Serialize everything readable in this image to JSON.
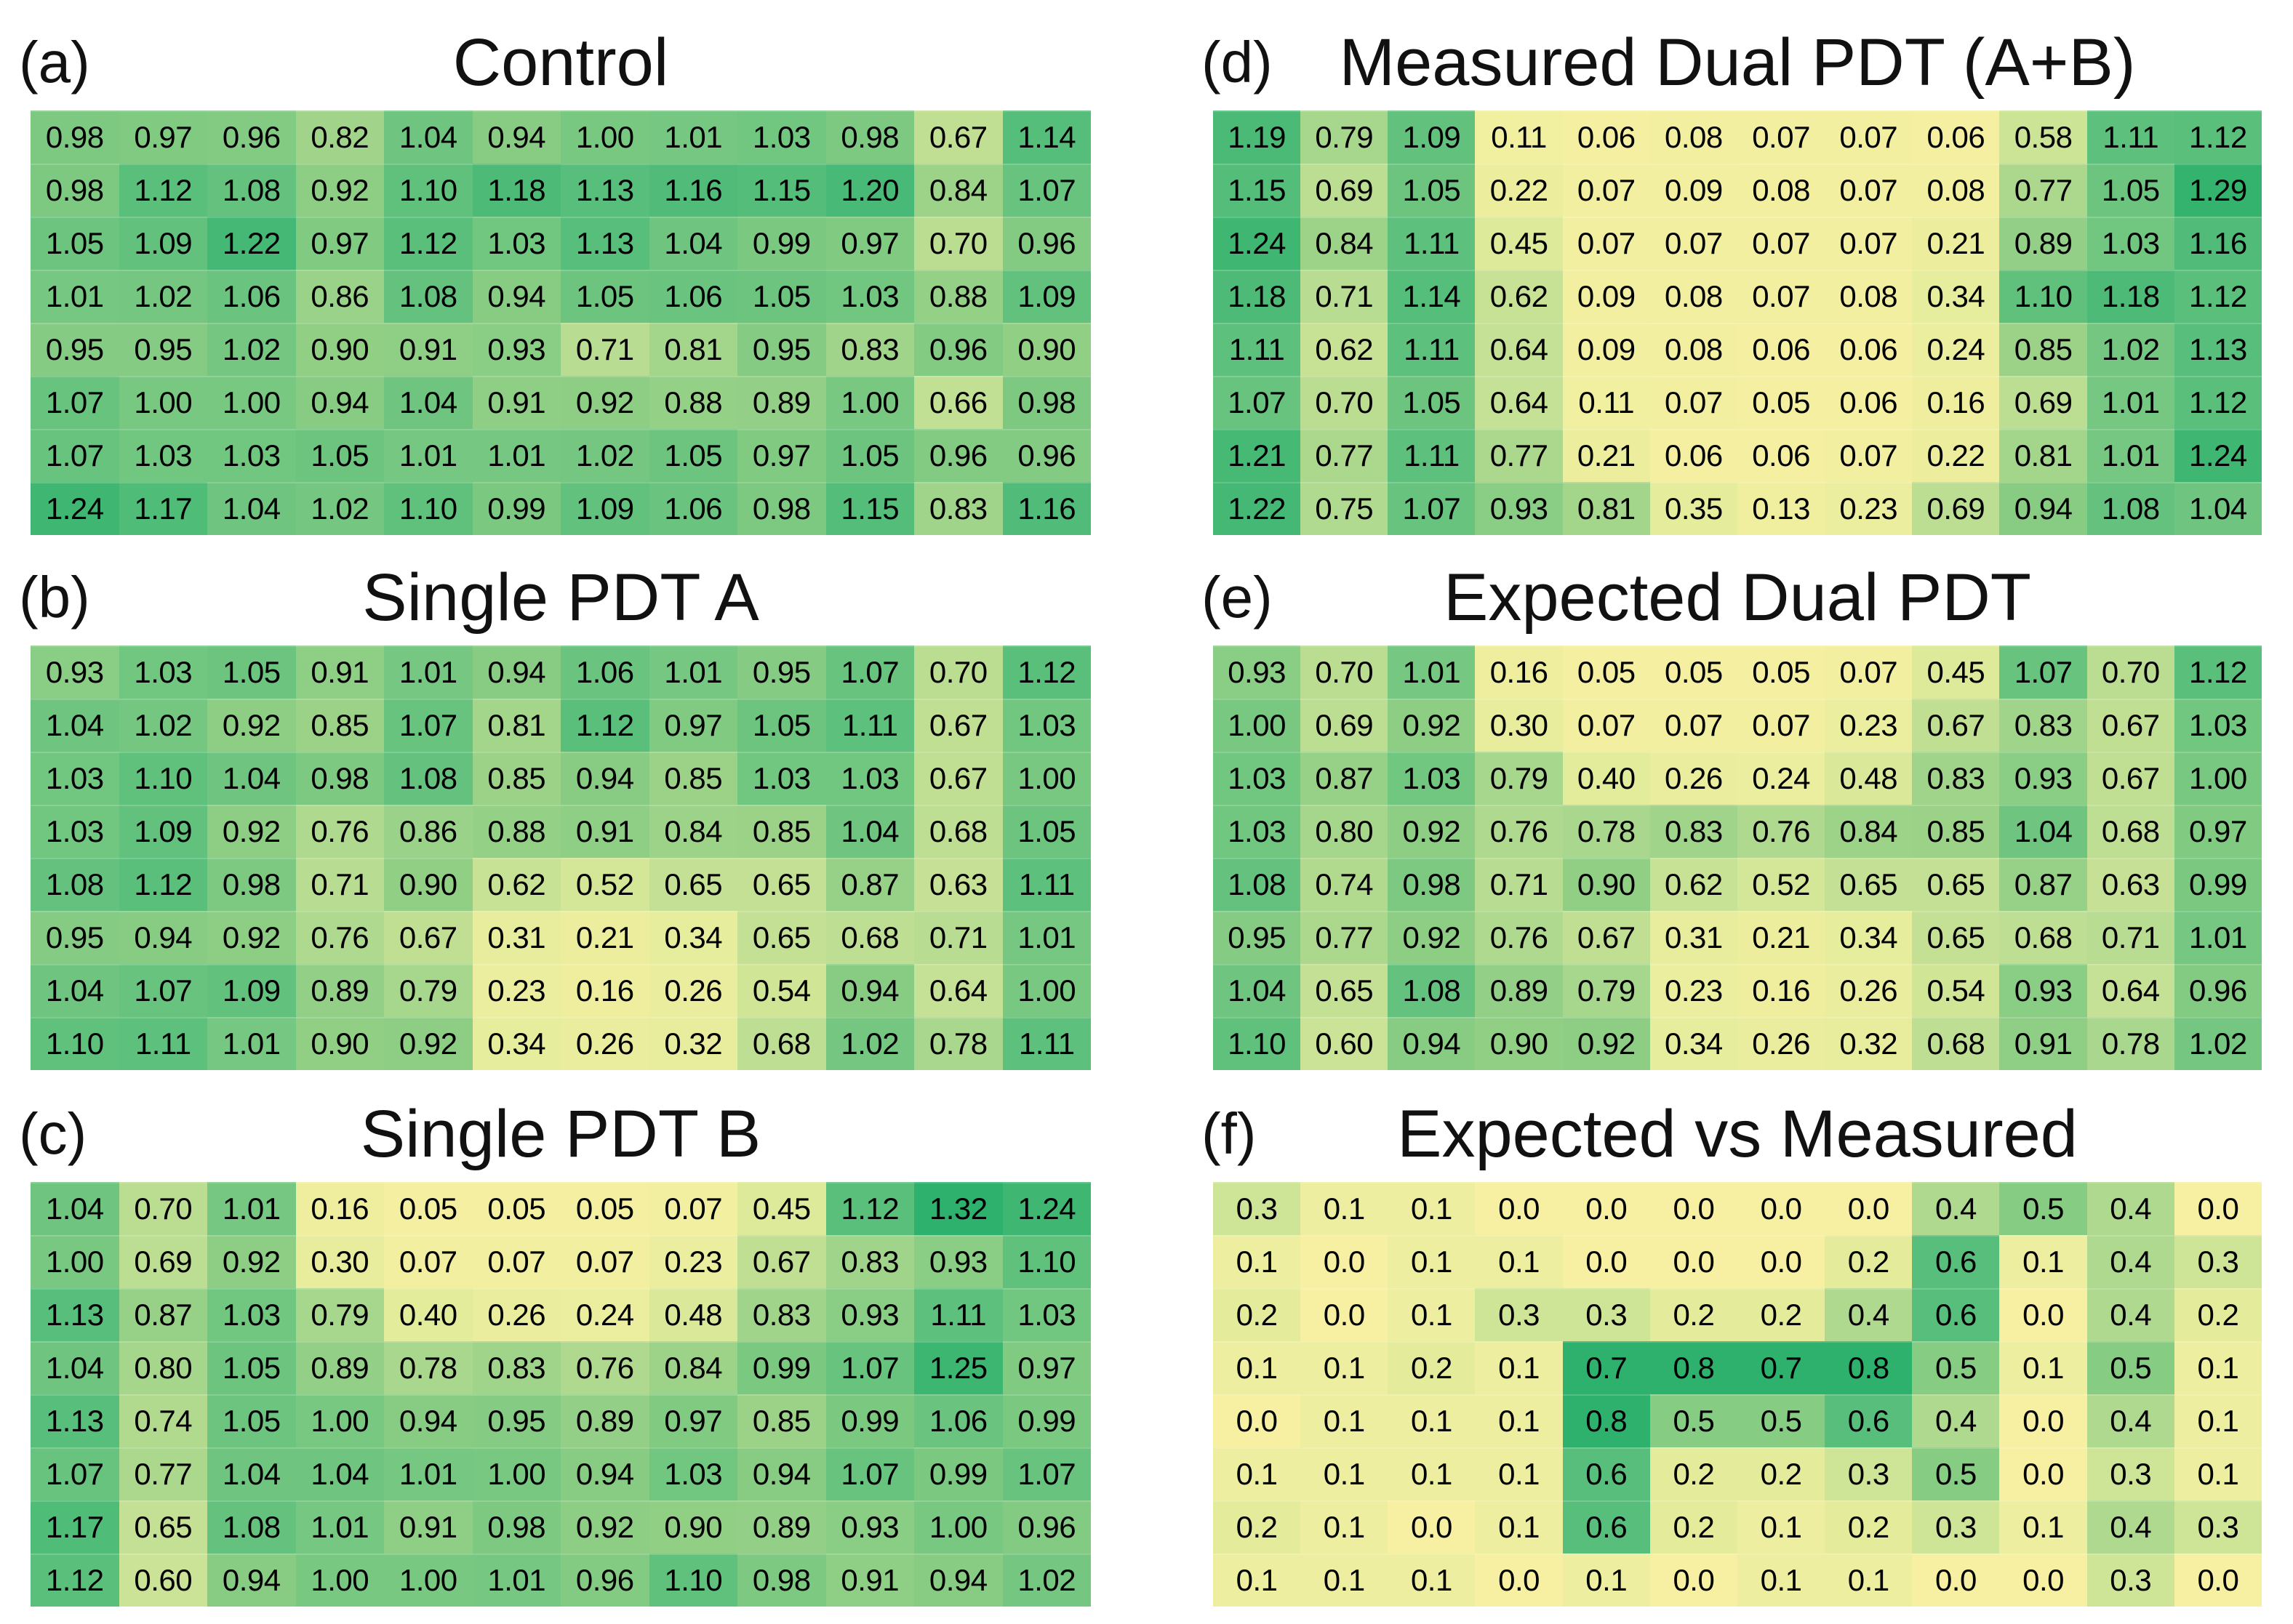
{
  "figure": {
    "description": "Six heatmap panels comparing PDT treatment conditions",
    "rows_per_panel": 8,
    "cols_per_panel": 12,
    "text_color": "#000000",
    "background": "#ffffff"
  },
  "colormap": {
    "low_color": "#F7F0A2",
    "high_color": "#2DB16C",
    "stops": [
      [
        0.0,
        "#F7F0A2"
      ],
      [
        0.3,
        "#E3EC9B"
      ],
      [
        0.5,
        "#C2E094"
      ],
      [
        0.7,
        "#8CCD84"
      ],
      [
        0.85,
        "#5ABF7C"
      ],
      [
        1.0,
        "#2DB16C"
      ]
    ]
  },
  "chart_data": [
    {
      "type": "heatmap",
      "panel_label": "(a)",
      "title": "Control",
      "rows": 8,
      "cols": 12,
      "vmin": 0,
      "vmax": 1.32,
      "decimals": 2,
      "values": [
        [
          0.98,
          0.97,
          0.96,
          0.82,
          1.04,
          0.94,
          1.0,
          1.01,
          1.03,
          0.98,
          0.67,
          1.14
        ],
        [
          0.98,
          1.12,
          1.08,
          0.92,
          1.1,
          1.18,
          1.13,
          1.16,
          1.15,
          1.2,
          0.84,
          1.07
        ],
        [
          1.05,
          1.09,
          1.22,
          0.97,
          1.12,
          1.03,
          1.13,
          1.04,
          0.99,
          0.97,
          0.7,
          0.96
        ],
        [
          1.01,
          1.02,
          1.06,
          0.86,
          1.08,
          0.94,
          1.05,
          1.06,
          1.05,
          1.03,
          0.88,
          1.09
        ],
        [
          0.95,
          0.95,
          1.02,
          0.9,
          0.91,
          0.93,
          0.71,
          0.81,
          0.95,
          0.83,
          0.96,
          0.9
        ],
        [
          1.07,
          1.0,
          1.0,
          0.94,
          1.04,
          0.91,
          0.92,
          0.88,
          0.89,
          1.0,
          0.66,
          0.98
        ],
        [
          1.07,
          1.03,
          1.03,
          1.05,
          1.01,
          1.01,
          1.02,
          1.05,
          0.97,
          1.05,
          0.96,
          0.96
        ],
        [
          1.24,
          1.17,
          1.04,
          1.02,
          1.1,
          0.99,
          1.09,
          1.06,
          0.98,
          1.15,
          0.83,
          1.16
        ]
      ]
    },
    {
      "type": "heatmap",
      "panel_label": "(b)",
      "title": "Single PDT A",
      "rows": 8,
      "cols": 12,
      "vmin": 0,
      "vmax": 1.32,
      "decimals": 2,
      "values": [
        [
          0.93,
          1.03,
          1.05,
          0.91,
          1.01,
          0.94,
          1.06,
          1.01,
          0.95,
          1.07,
          0.7,
          1.12
        ],
        [
          1.04,
          1.02,
          0.92,
          0.85,
          1.07,
          0.81,
          1.12,
          0.97,
          1.05,
          1.11,
          0.67,
          1.03
        ],
        [
          1.03,
          1.1,
          1.04,
          0.98,
          1.08,
          0.85,
          0.94,
          0.85,
          1.03,
          1.03,
          0.67,
          1.0
        ],
        [
          1.03,
          1.09,
          0.92,
          0.76,
          0.86,
          0.88,
          0.91,
          0.84,
          0.85,
          1.04,
          0.68,
          1.05
        ],
        [
          1.08,
          1.12,
          0.98,
          0.71,
          0.9,
          0.62,
          0.52,
          0.65,
          0.65,
          0.87,
          0.63,
          1.11
        ],
        [
          0.95,
          0.94,
          0.92,
          0.76,
          0.67,
          0.31,
          0.21,
          0.34,
          0.65,
          0.68,
          0.71,
          1.01
        ],
        [
          1.04,
          1.07,
          1.09,
          0.89,
          0.79,
          0.23,
          0.16,
          0.26,
          0.54,
          0.94,
          0.64,
          1.0
        ],
        [
          1.1,
          1.11,
          1.01,
          0.9,
          0.92,
          0.34,
          0.26,
          0.32,
          0.68,
          1.02,
          0.78,
          1.11
        ]
      ]
    },
    {
      "type": "heatmap",
      "panel_label": "(c)",
      "title": "Single PDT B",
      "rows": 8,
      "cols": 12,
      "vmin": 0,
      "vmax": 1.32,
      "decimals": 2,
      "values": [
        [
          1.04,
          0.7,
          1.01,
          0.16,
          0.05,
          0.05,
          0.05,
          0.07,
          0.45,
          1.12,
          1.32,
          1.24
        ],
        [
          1.0,
          0.69,
          0.92,
          0.3,
          0.07,
          0.07,
          0.07,
          0.23,
          0.67,
          0.83,
          0.93,
          1.1
        ],
        [
          1.13,
          0.87,
          1.03,
          0.79,
          0.4,
          0.26,
          0.24,
          0.48,
          0.83,
          0.93,
          1.11,
          1.03
        ],
        [
          1.04,
          0.8,
          1.05,
          0.89,
          0.78,
          0.83,
          0.76,
          0.84,
          0.99,
          1.07,
          1.25,
          0.97
        ],
        [
          1.13,
          0.74,
          1.05,
          1.0,
          0.94,
          0.95,
          0.89,
          0.97,
          0.85,
          0.99,
          1.06,
          0.99
        ],
        [
          1.07,
          0.77,
          1.04,
          1.04,
          1.01,
          1.0,
          0.94,
          1.03,
          0.94,
          1.07,
          0.99,
          1.07
        ],
        [
          1.17,
          0.65,
          1.08,
          1.01,
          0.91,
          0.98,
          0.92,
          0.9,
          0.89,
          0.93,
          1.0,
          0.96
        ],
        [
          1.12,
          0.6,
          0.94,
          1.0,
          1.0,
          1.01,
          0.96,
          1.1,
          0.98,
          0.91,
          0.94,
          1.02
        ]
      ]
    },
    {
      "type": "heatmap",
      "panel_label": "(d)",
      "title": "Measured Dual PDT (A+B)",
      "rows": 8,
      "cols": 12,
      "vmin": 0,
      "vmax": 1.32,
      "decimals": 2,
      "values": [
        [
          1.19,
          0.79,
          1.09,
          0.11,
          0.06,
          0.08,
          0.07,
          0.07,
          0.06,
          0.58,
          1.11,
          1.12
        ],
        [
          1.15,
          0.69,
          1.05,
          0.22,
          0.07,
          0.09,
          0.08,
          0.07,
          0.08,
          0.77,
          1.05,
          1.29
        ],
        [
          1.24,
          0.84,
          1.11,
          0.45,
          0.07,
          0.07,
          0.07,
          0.07,
          0.21,
          0.89,
          1.03,
          1.16
        ],
        [
          1.18,
          0.71,
          1.14,
          0.62,
          0.09,
          0.08,
          0.07,
          0.08,
          0.34,
          1.1,
          1.18,
          1.12
        ],
        [
          1.11,
          0.62,
          1.11,
          0.64,
          0.09,
          0.08,
          0.06,
          0.06,
          0.24,
          0.85,
          1.02,
          1.13
        ],
        [
          1.07,
          0.7,
          1.05,
          0.64,
          0.11,
          0.07,
          0.05,
          0.06,
          0.16,
          0.69,
          1.01,
          1.12
        ],
        [
          1.21,
          0.77,
          1.11,
          0.77,
          0.21,
          0.06,
          0.06,
          0.07,
          0.22,
          0.81,
          1.01,
          1.24
        ],
        [
          1.22,
          0.75,
          1.07,
          0.93,
          0.81,
          0.35,
          0.13,
          0.23,
          0.69,
          0.94,
          1.08,
          1.04
        ]
      ]
    },
    {
      "type": "heatmap",
      "panel_label": "(e)",
      "title": "Expected Dual PDT",
      "rows": 8,
      "cols": 12,
      "vmin": 0,
      "vmax": 1.32,
      "decimals": 2,
      "values": [
        [
          0.93,
          0.7,
          1.01,
          0.16,
          0.05,
          0.05,
          0.05,
          0.07,
          0.45,
          1.07,
          0.7,
          1.12
        ],
        [
          1.0,
          0.69,
          0.92,
          0.3,
          0.07,
          0.07,
          0.07,
          0.23,
          0.67,
          0.83,
          0.67,
          1.03
        ],
        [
          1.03,
          0.87,
          1.03,
          0.79,
          0.4,
          0.26,
          0.24,
          0.48,
          0.83,
          0.93,
          0.67,
          1.0
        ],
        [
          1.03,
          0.8,
          0.92,
          0.76,
          0.78,
          0.83,
          0.76,
          0.84,
          0.85,
          1.04,
          0.68,
          0.97
        ],
        [
          1.08,
          0.74,
          0.98,
          0.71,
          0.9,
          0.62,
          0.52,
          0.65,
          0.65,
          0.87,
          0.63,
          0.99
        ],
        [
          0.95,
          0.77,
          0.92,
          0.76,
          0.67,
          0.31,
          0.21,
          0.34,
          0.65,
          0.68,
          0.71,
          1.01
        ],
        [
          1.04,
          0.65,
          1.08,
          0.89,
          0.79,
          0.23,
          0.16,
          0.26,
          0.54,
          0.93,
          0.64,
          0.96
        ],
        [
          1.1,
          0.6,
          0.94,
          0.9,
          0.92,
          0.34,
          0.26,
          0.32,
          0.68,
          0.91,
          0.78,
          1.02
        ]
      ]
    },
    {
      "type": "heatmap",
      "panel_label": "(f)",
      "title": "Expected vs Measured",
      "rows": 8,
      "cols": 12,
      "vmin": 0,
      "vmax": 0.7,
      "decimals": 1,
      "values": [
        [
          0.3,
          0.1,
          0.1,
          0.0,
          0.0,
          0.0,
          0.0,
          0.0,
          0.4,
          0.5,
          0.4,
          0.0
        ],
        [
          0.1,
          0.0,
          0.1,
          0.1,
          0.0,
          0.0,
          0.0,
          0.2,
          0.6,
          0.1,
          0.4,
          0.3
        ],
        [
          0.2,
          0.0,
          0.1,
          0.3,
          0.3,
          0.2,
          0.2,
          0.4,
          0.6,
          0.0,
          0.4,
          0.2
        ],
        [
          0.1,
          0.1,
          0.2,
          0.1,
          0.7,
          0.8,
          0.7,
          0.8,
          0.5,
          0.1,
          0.5,
          0.1
        ],
        [
          0.0,
          0.1,
          0.1,
          0.1,
          0.8,
          0.5,
          0.5,
          0.6,
          0.4,
          0.0,
          0.4,
          0.1
        ],
        [
          0.1,
          0.1,
          0.1,
          0.1,
          0.6,
          0.2,
          0.2,
          0.3,
          0.5,
          0.0,
          0.3,
          0.1
        ],
        [
          0.2,
          0.1,
          0.0,
          0.1,
          0.6,
          0.2,
          0.1,
          0.2,
          0.3,
          0.1,
          0.4,
          0.3
        ],
        [
          0.1,
          0.1,
          0.1,
          0.0,
          0.1,
          0.0,
          0.1,
          0.1,
          0.0,
          0.0,
          0.3,
          0.0
        ]
      ]
    }
  ]
}
